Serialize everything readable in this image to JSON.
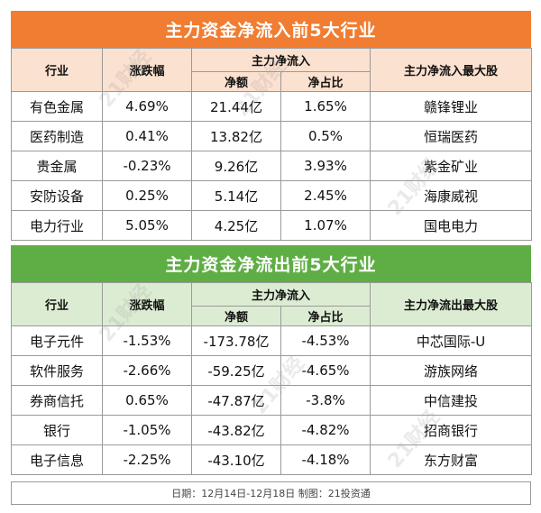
{
  "inflow": {
    "title": "主力资金净流入前5大行业",
    "headers": {
      "industry": "行业",
      "change": "涨跌幅",
      "group": "主力净流入",
      "amount": "净额",
      "ratio": "净占比",
      "stock": "主力净流入最大股"
    },
    "rows": [
      {
        "industry": "有色金属",
        "change": "4.69%",
        "amount": "21.44亿",
        "ratio": "1.65%",
        "stock": "赣锋锂业"
      },
      {
        "industry": "医药制造",
        "change": "0.41%",
        "amount": "13.82亿",
        "ratio": "0.5%",
        "stock": "恒瑞医药"
      },
      {
        "industry": "贵金属",
        "change": "-0.23%",
        "amount": "9.26亿",
        "ratio": "3.93%",
        "stock": "紫金矿业"
      },
      {
        "industry": "安防设备",
        "change": "0.25%",
        "amount": "5.14亿",
        "ratio": "2.45%",
        "stock": "海康威视"
      },
      {
        "industry": "电力行业",
        "change": "5.05%",
        "amount": "4.25亿",
        "ratio": "1.07%",
        "stock": "国电电力"
      }
    ]
  },
  "outflow": {
    "title": "主力资金净流出前5大行业",
    "headers": {
      "industry": "行业",
      "change": "涨跌幅",
      "group": "主力净流入",
      "amount": "净额",
      "ratio": "净占比",
      "stock": "主力净流出最大股"
    },
    "rows": [
      {
        "industry": "电子元件",
        "change": "-1.53%",
        "amount": "-173.78亿",
        "ratio": "-4.53%",
        "stock": "中芯国际-U"
      },
      {
        "industry": "软件服务",
        "change": "-2.66%",
        "amount": "-59.25亿",
        "ratio": "-4.65%",
        "stock": "游族网络"
      },
      {
        "industry": "券商信托",
        "change": "0.65%",
        "amount": "-47.87亿",
        "ratio": "-3.8%",
        "stock": "中信建投"
      },
      {
        "industry": "银行",
        "change": "-1.05%",
        "amount": "-43.82亿",
        "ratio": "-4.82%",
        "stock": "招商银行"
      },
      {
        "industry": "电子信息",
        "change": "-2.25%",
        "amount": "-43.10亿",
        "ratio": "-4.18%",
        "stock": "东方财富"
      }
    ]
  },
  "footer": "日期：12月14日-12月18日  制图：21投资通",
  "watermark": "21财经"
}
